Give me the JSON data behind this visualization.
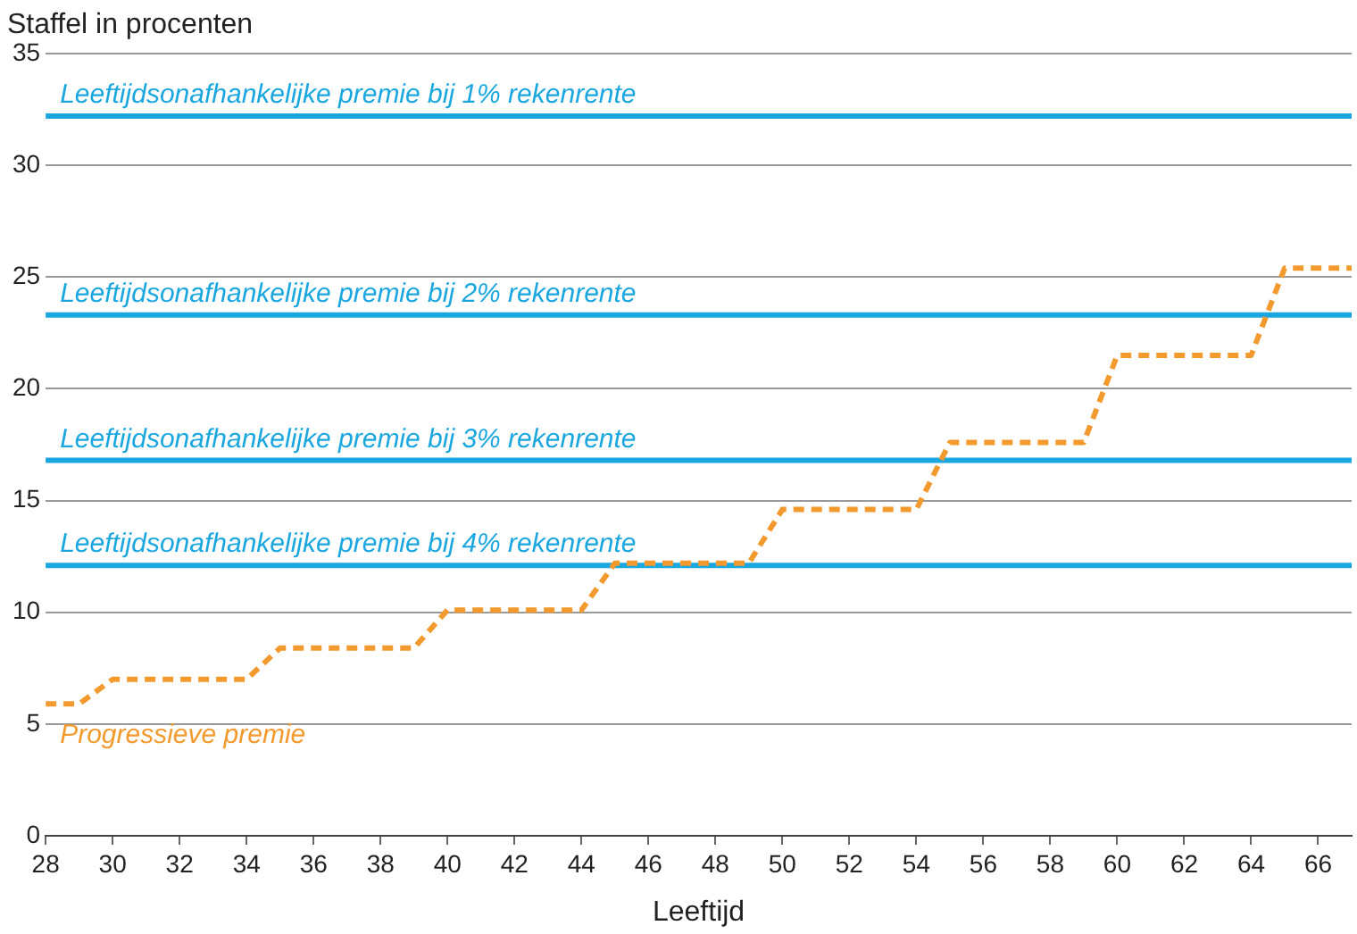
{
  "chart_data": {
    "type": "line",
    "ylabel": "Staffel in procenten",
    "xlabel": "Leeftijd",
    "xlim": [
      28,
      67
    ],
    "xticks": [
      28,
      30,
      32,
      34,
      36,
      38,
      40,
      42,
      44,
      46,
      48,
      50,
      52,
      54,
      56,
      58,
      60,
      62,
      64,
      66
    ],
    "ylim": [
      0,
      35
    ],
    "yticks": [
      0,
      5,
      10,
      15,
      20,
      25,
      30,
      35
    ],
    "grid": "y",
    "marker": "none",
    "series": [
      {
        "name": "Progressieve premie",
        "color": "#f39a2e",
        "line_style": "dashed",
        "x": [
          28,
          29,
          30,
          34,
          35,
          39,
          40,
          44,
          45,
          49,
          50,
          54,
          55,
          59,
          60,
          64,
          65,
          67
        ],
        "values": [
          5.9,
          5.9,
          7.0,
          7.0,
          8.4,
          8.4,
          10.1,
          10.1,
          12.2,
          12.2,
          14.6,
          14.6,
          17.6,
          17.6,
          21.5,
          21.5,
          25.4,
          25.4
        ]
      }
    ],
    "ref_lines": [
      {
        "axis": "y",
        "value": 32.2,
        "label": "Leeftijdsonafhankelijke premie bij 1% rekenrente",
        "color": "#1aa7e0"
      },
      {
        "axis": "y",
        "value": 23.3,
        "label": "Leeftijdsonafhankelijke premie bij 2% rekenrente",
        "color": "#1aa7e0"
      },
      {
        "axis": "y",
        "value": 16.8,
        "label": "Leeftijdsonafhankelijke premie bij 3% rekenrente",
        "color": "#1aa7e0"
      },
      {
        "axis": "y",
        "value": 12.1,
        "label": "Leeftijdsonafhankelijke premie bij 4% rekenrente",
        "color": "#1aa7e0"
      }
    ]
  }
}
